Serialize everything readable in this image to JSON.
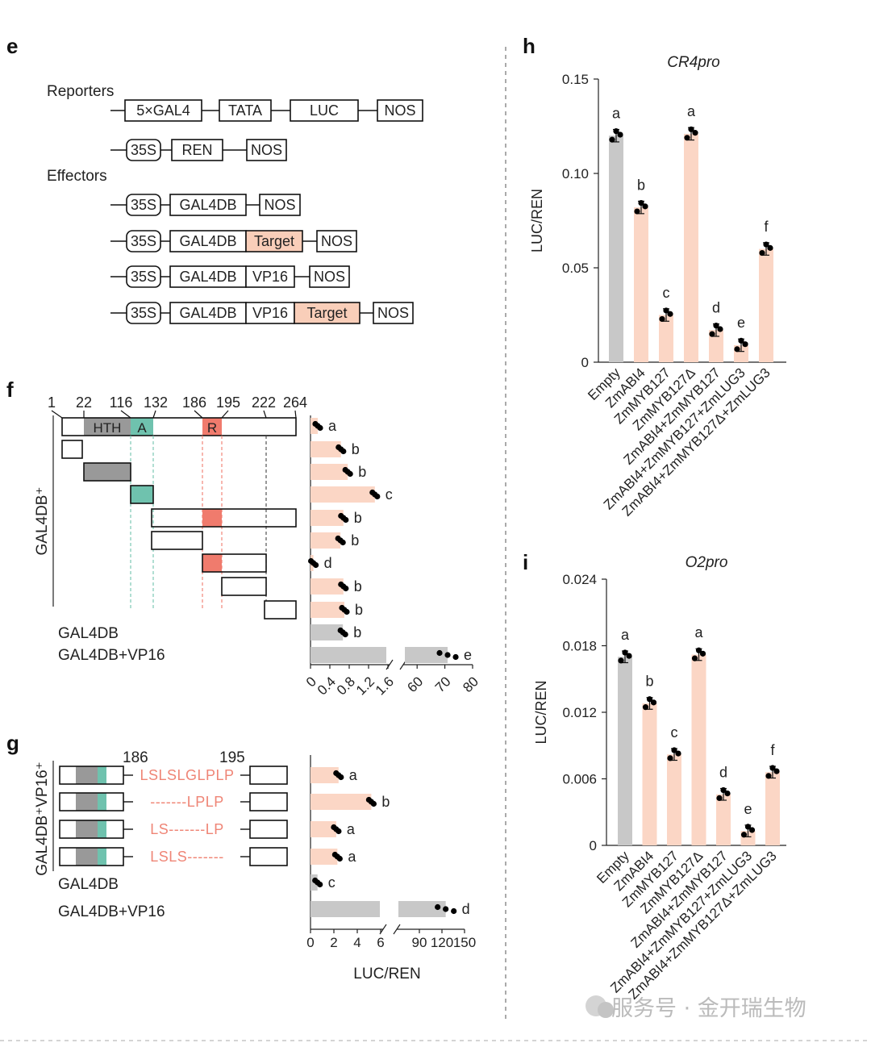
{
  "panels": {
    "e": "e",
    "f": "f",
    "g": "g",
    "h": "h",
    "i": "i"
  },
  "colors": {
    "bar_gray": "#c8c8c8",
    "bar_peach": "#fbd6c5",
    "target_fill": "#f9ceb9",
    "hth_gray": "#999999",
    "a_teal": "#6fc2ae",
    "r_red": "#f07b6d",
    "motif_text": "#ef8576",
    "dots": "#000000"
  },
  "panel_e": {
    "reporters_label": "Reporters",
    "effectors_label": "Effectors",
    "reporter_boxes": [
      "5×GAL4",
      "TATA",
      "LUC",
      "NOS"
    ],
    "ren_boxes": [
      "35S",
      "REN",
      "NOS"
    ],
    "effector_rows": [
      [
        "35S",
        "GAL4DB",
        "NOS"
      ],
      [
        "35S",
        "GAL4DB",
        "Target",
        "NOS"
      ],
      [
        "35S",
        "GAL4DB",
        "VP16",
        "NOS"
      ],
      [
        "35S",
        "GAL4DB",
        "VP16",
        "Target",
        "NOS"
      ]
    ]
  },
  "panel_f": {
    "positions": [
      "1",
      "22",
      "116",
      "132",
      "186",
      "195",
      "222",
      "264"
    ],
    "domains": {
      "hth": "HTH",
      "a": "A",
      "r": "R"
    },
    "side_label": "GAL4DB⁺",
    "control_labels": [
      "GAL4DB",
      "GAL4DB+VP16"
    ],
    "row_letters": [
      "a",
      "b",
      "b",
      "c",
      "b",
      "b",
      "d",
      "b",
      "b",
      "b",
      "e"
    ],
    "row_values": [
      0.15,
      0.63,
      0.77,
      1.33,
      0.68,
      0.62,
      0.06,
      0.68,
      0.7,
      0.67,
      71
    ],
    "x_ticks_left": [
      "0",
      "0.4",
      "0.8",
      "1.2",
      "1.6"
    ],
    "x_ticks_right": [
      "60",
      "70",
      "80"
    ]
  },
  "panel_g": {
    "positions": [
      "186",
      "195"
    ],
    "side_label": "GAL4DB⁺VP16⁺",
    "motifs": [
      "LSLSLGLPLP",
      "-------LPLP",
      "LS-------LP",
      "LSLS-------"
    ],
    "control_labels": [
      "GAL4DB",
      "GAL4DB+VP16"
    ],
    "row_letters": [
      "a",
      "b",
      "a",
      "a",
      "c",
      "d"
    ],
    "row_values": [
      2.4,
      5.2,
      2.2,
      2.3,
      0.6,
      125
    ],
    "x_ticks_left": [
      "0",
      "2",
      "4",
      "6"
    ],
    "x_ticks_right": [
      "90",
      "120",
      "150"
    ],
    "xlabel": "LUC/REN"
  },
  "categories": [
    "Empty",
    "ZmABI4",
    "ZmMYB127",
    "ZmMYB127Δ",
    "ZmABI4+ZmMYB127",
    "ZmABI4+ZmMYB127+ZmLUG3",
    "ZmABI4+ZmMYB127Δ+ZmLUG3"
  ],
  "chart_data": [
    {
      "type": "bar",
      "title": "CR4pro",
      "ylabel": "LUC/REN",
      "ylim": [
        0,
        0.15
      ],
      "yticks": [
        "0",
        "0.05",
        "0.10",
        "0.15"
      ],
      "categories": [
        "Empty",
        "ZmABI4",
        "ZmMYB127",
        "ZmMYB127Δ",
        "ZmABI4+ZmMYB127",
        "ZmABI4+ZmMYB127+ZmLUG3",
        "ZmABI4+ZmMYB127Δ+ZmLUG3"
      ],
      "values": [
        0.12,
        0.082,
        0.025,
        0.121,
        0.017,
        0.009,
        0.06
      ],
      "letters": [
        "a",
        "b",
        "c",
        "a",
        "d",
        "e",
        "f"
      ]
    },
    {
      "type": "bar",
      "title": "O2pro",
      "ylabel": "LUC/REN",
      "ylim": [
        0,
        0.024
      ],
      "yticks": [
        "0",
        "0.006",
        "0.012",
        "0.018",
        "0.024"
      ],
      "categories": [
        "Empty",
        "ZmABI4",
        "ZmMYB127",
        "ZmMYB127Δ",
        "ZmABI4+ZmMYB127",
        "ZmABI4+ZmMYB127+ZmLUG3",
        "ZmABI4+ZmMYB127Δ+ZmLUG3"
      ],
      "values": [
        0.017,
        0.0128,
        0.0082,
        0.0172,
        0.0046,
        0.0013,
        0.0066
      ],
      "letters": [
        "a",
        "b",
        "c",
        "a",
        "d",
        "e",
        "f"
      ]
    }
  ],
  "watermark": "服务号 · 金开瑞生物"
}
